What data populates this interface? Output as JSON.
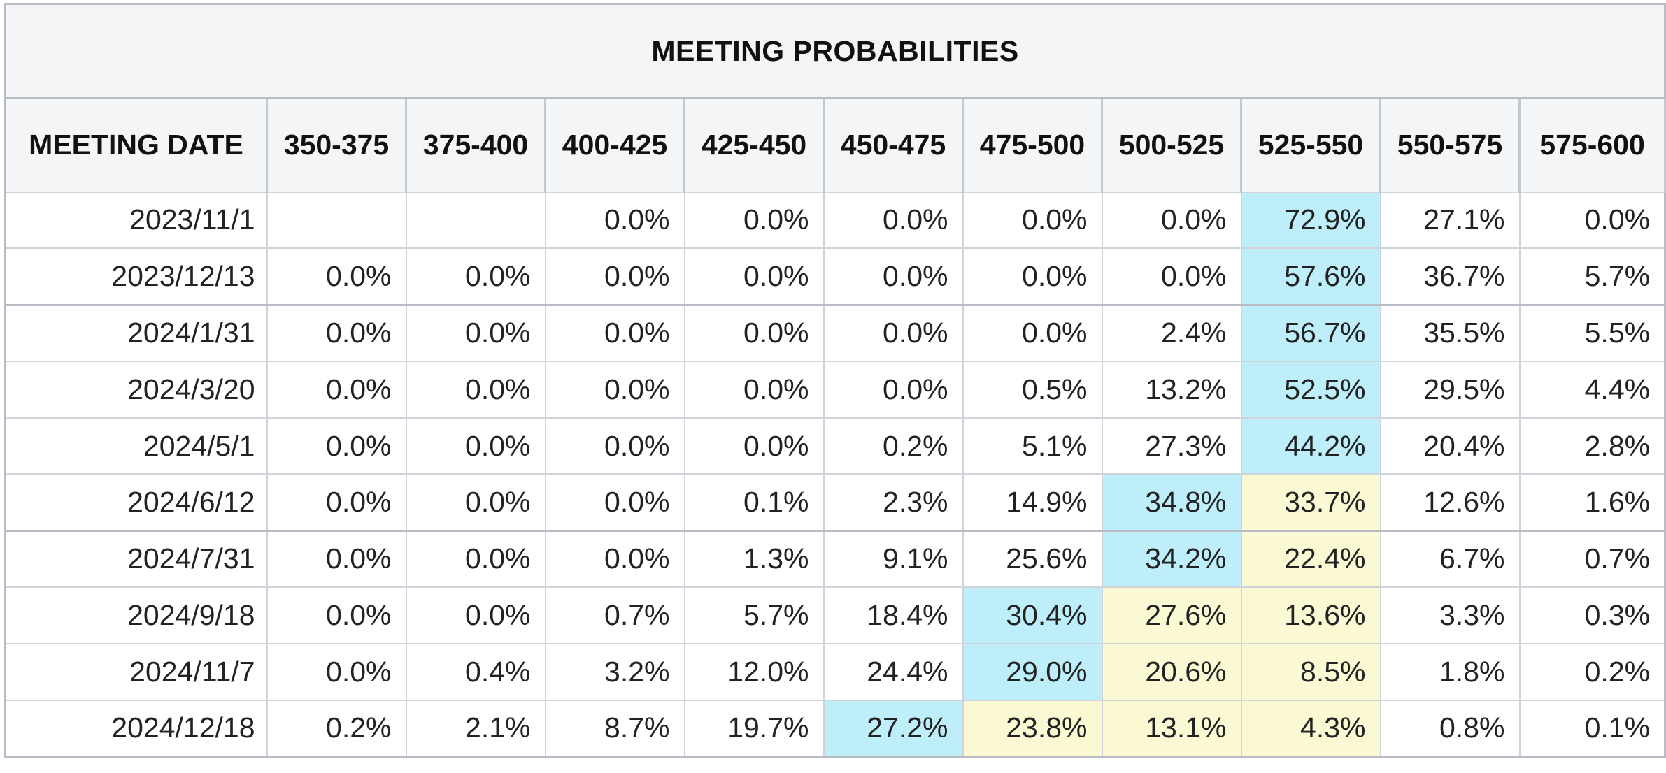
{
  "table": {
    "title": "MEETING PROBABILITIES",
    "headers": [
      "MEETING DATE",
      "350-375",
      "375-400",
      "400-425",
      "425-450",
      "450-475",
      "475-500",
      "500-525",
      "525-550",
      "550-575",
      "575-600"
    ],
    "rows": [
      {
        "date": "2023/11/1",
        "values": [
          "",
          "",
          "0.0%",
          "0.0%",
          "0.0%",
          "0.0%",
          "0.0%",
          "72.9%",
          "27.1%",
          "0.0%"
        ]
      },
      {
        "date": "2023/12/13",
        "values": [
          "0.0%",
          "0.0%",
          "0.0%",
          "0.0%",
          "0.0%",
          "0.0%",
          "0.0%",
          "57.6%",
          "36.7%",
          "5.7%"
        ]
      },
      {
        "date": "2024/1/31",
        "values": [
          "0.0%",
          "0.0%",
          "0.0%",
          "0.0%",
          "0.0%",
          "0.0%",
          "2.4%",
          "56.7%",
          "35.5%",
          "5.5%"
        ]
      },
      {
        "date": "2024/3/20",
        "values": [
          "0.0%",
          "0.0%",
          "0.0%",
          "0.0%",
          "0.0%",
          "0.5%",
          "13.2%",
          "52.5%",
          "29.5%",
          "4.4%"
        ]
      },
      {
        "date": "2024/5/1",
        "values": [
          "0.0%",
          "0.0%",
          "0.0%",
          "0.0%",
          "0.2%",
          "5.1%",
          "27.3%",
          "44.2%",
          "20.4%",
          "2.8%"
        ]
      },
      {
        "date": "2024/6/12",
        "values": [
          "0.0%",
          "0.0%",
          "0.0%",
          "0.1%",
          "2.3%",
          "14.9%",
          "34.8%",
          "33.7%",
          "12.6%",
          "1.6%"
        ]
      },
      {
        "date": "2024/7/31",
        "values": [
          "0.0%",
          "0.0%",
          "0.0%",
          "1.3%",
          "9.1%",
          "25.6%",
          "34.2%",
          "22.4%",
          "6.7%",
          "0.7%"
        ]
      },
      {
        "date": "2024/9/18",
        "values": [
          "0.0%",
          "0.0%",
          "0.7%",
          "5.7%",
          "18.4%",
          "30.4%",
          "27.6%",
          "13.6%",
          "3.3%",
          "0.3%"
        ]
      },
      {
        "date": "2024/11/7",
        "values": [
          "0.0%",
          "0.4%",
          "3.2%",
          "12.0%",
          "24.4%",
          "29.0%",
          "20.6%",
          "8.5%",
          "1.8%",
          "0.2%"
        ]
      },
      {
        "date": "2024/12/18",
        "values": [
          "0.2%",
          "2.1%",
          "8.7%",
          "19.7%",
          "27.2%",
          "23.8%",
          "13.1%",
          "4.3%",
          "0.8%",
          "0.1%"
        ]
      }
    ],
    "highlight_blue": [
      [
        0,
        7
      ],
      [
        1,
        7
      ],
      [
        2,
        7
      ],
      [
        3,
        7
      ],
      [
        4,
        7
      ],
      [
        5,
        6
      ],
      [
        6,
        6
      ],
      [
        7,
        5
      ],
      [
        8,
        5
      ],
      [
        9,
        4
      ]
    ],
    "highlight_yellow": [
      [
        5,
        7
      ],
      [
        6,
        7
      ],
      [
        7,
        6
      ],
      [
        7,
        7
      ],
      [
        8,
        6
      ],
      [
        8,
        7
      ],
      [
        9,
        5
      ],
      [
        9,
        6
      ],
      [
        9,
        7
      ]
    ],
    "colors": {
      "highlight_blue": "#bdeefa",
      "highlight_yellow": "#fbf9d4",
      "header_background": "#f4f5f7",
      "border": "#cfd3da"
    }
  }
}
